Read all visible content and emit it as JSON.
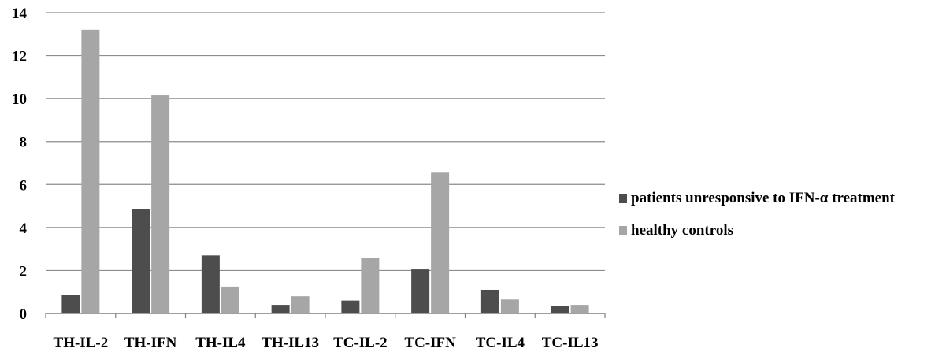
{
  "chart_data": {
    "type": "bar",
    "categories": [
      "TH-IL-2",
      "TH-IFN",
      "TH-IL4",
      "TH-IL13",
      "TC-IL-2",
      "TC-IFN",
      "TC-IL4",
      "TC-IL13"
    ],
    "series": [
      {
        "name": "patients unresponsive to IFN-α treatment",
        "color": "#4d4d4d",
        "values": [
          0.85,
          4.85,
          2.7,
          0.4,
          0.6,
          2.05,
          1.1,
          0.35
        ]
      },
      {
        "name": "healthy controls",
        "color": "#a6a6a6",
        "values": [
          13.2,
          10.15,
          1.25,
          0.8,
          2.6,
          6.55,
          0.65,
          0.4
        ]
      }
    ],
    "ylim": [
      0,
      14
    ],
    "yticks": [
      0,
      2,
      4,
      6,
      8,
      10,
      12,
      14
    ],
    "grid": true,
    "legend": "right"
  }
}
